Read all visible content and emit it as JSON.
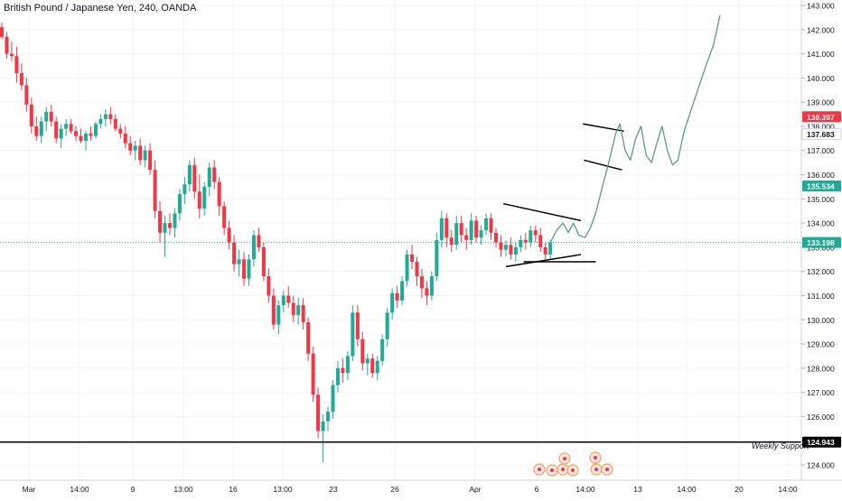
{
  "chart_data": {
    "type": "candlestick",
    "title": "British Pound / Japanese Yen, 240, OANDA",
    "ylim": [
      123.5,
      143.2
    ],
    "y_ticks": [
      124,
      125,
      126,
      127,
      128,
      129,
      130,
      131,
      132,
      133,
      134,
      135,
      136,
      137,
      138,
      139,
      140,
      141,
      142,
      143
    ],
    "y_tick_labels": [
      "124.000",
      "125.000",
      "126.000",
      "127.000",
      "128.000",
      "129.000",
      "130.000",
      "131.000",
      "132.000",
      "133.000",
      "134.000",
      "135.000",
      "136.000",
      "137.000",
      "138.000",
      "139.000",
      "140.000",
      "141.000",
      "142.000",
      "143.000"
    ],
    "x_tick_labels": [
      "Mar",
      "14:00",
      "9",
      "13:00",
      "16",
      "13:00",
      "23",
      "26",
      "Apr",
      "6",
      "14:00",
      "13",
      "14:00",
      "20",
      "14:00"
    ],
    "price_badges": [
      {
        "label": "138.397",
        "value": 138.397,
        "color": "#f23645"
      },
      {
        "label": "137.683",
        "value": 137.683,
        "color": "#ffffff"
      },
      {
        "label": "135.534",
        "value": 135.534,
        "color": "#22ab94"
      },
      {
        "label": "133.198",
        "value": 133.198,
        "color": "#22ab94"
      },
      {
        "label": "124.943",
        "value": 124.943,
        "color": "#000000"
      }
    ],
    "current_price": 133.198,
    "support_level": 124.943,
    "support_label": "Weekly Support",
    "colors": {
      "up": "#22ab94",
      "down": "#f23645",
      "projection": "#5b9a88",
      "lines": "#000000"
    },
    "candles": [
      [
        142.1,
        142.3,
        141.6,
        141.7
      ],
      [
        141.7,
        141.9,
        140.8,
        141.0
      ],
      [
        141.0,
        141.5,
        140.7,
        140.9
      ],
      [
        140.9,
        141.3,
        139.8,
        140.2
      ],
      [
        140.2,
        140.6,
        139.5,
        139.7
      ],
      [
        139.7,
        140.0,
        138.6,
        138.9
      ],
      [
        138.9,
        139.2,
        137.7,
        138.0
      ],
      [
        138.0,
        138.4,
        137.4,
        137.6
      ],
      [
        137.6,
        138.4,
        137.3,
        138.2
      ],
      [
        138.2,
        138.8,
        137.8,
        138.6
      ],
      [
        138.6,
        138.9,
        138.0,
        138.2
      ],
      [
        138.2,
        138.4,
        137.3,
        137.5
      ],
      [
        137.5,
        138.1,
        137.1,
        137.9
      ],
      [
        137.9,
        138.3,
        137.6,
        138.1
      ],
      [
        138.1,
        138.3,
        137.7,
        137.8
      ],
      [
        137.8,
        138.0,
        137.4,
        137.6
      ],
      [
        137.6,
        137.9,
        137.3,
        137.4
      ],
      [
        137.4,
        137.8,
        137.0,
        137.7
      ],
      [
        137.7,
        138.0,
        137.4,
        137.6
      ],
      [
        137.6,
        138.2,
        137.5,
        138.1
      ],
      [
        138.1,
        138.5,
        137.9,
        138.3
      ],
      [
        138.3,
        138.7,
        138.0,
        138.5
      ],
      [
        138.5,
        138.8,
        138.1,
        138.3
      ],
      [
        138.3,
        138.5,
        137.8,
        137.9
      ],
      [
        137.9,
        138.1,
        137.5,
        137.7
      ],
      [
        137.7,
        138.0,
        137.1,
        137.3
      ],
      [
        137.3,
        137.6,
        136.8,
        137.0
      ],
      [
        137.0,
        137.4,
        136.6,
        137.2
      ],
      [
        137.2,
        137.5,
        136.4,
        136.6
      ],
      [
        136.6,
        137.2,
        136.3,
        137.0
      ],
      [
        137.0,
        137.3,
        136.0,
        136.2
      ],
      [
        136.2,
        136.6,
        134.2,
        134.5
      ],
      [
        134.5,
        134.9,
        133.2,
        133.6
      ],
      [
        133.6,
        134.3,
        132.6,
        134.0
      ],
      [
        134.0,
        134.4,
        133.5,
        133.8
      ],
      [
        133.8,
        134.6,
        133.4,
        134.4
      ],
      [
        134.4,
        135.4,
        134.1,
        135.2
      ],
      [
        135.2,
        135.9,
        134.8,
        135.6
      ],
      [
        135.6,
        136.6,
        135.3,
        136.4
      ],
      [
        136.4,
        136.7,
        135.0,
        135.3
      ],
      [
        135.3,
        136.0,
        134.2,
        134.6
      ],
      [
        134.6,
        135.7,
        134.3,
        135.5
      ],
      [
        135.5,
        136.5,
        135.1,
        136.3
      ],
      [
        136.3,
        136.6,
        135.4,
        135.7
      ],
      [
        135.7,
        135.9,
        134.3,
        134.7
      ],
      [
        134.7,
        134.9,
        133.5,
        133.8
      ],
      [
        133.8,
        134.1,
        132.9,
        133.2
      ],
      [
        133.2,
        133.5,
        132.0,
        132.3
      ],
      [
        132.3,
        132.9,
        131.8,
        132.5
      ],
      [
        132.5,
        132.8,
        131.4,
        131.7
      ],
      [
        131.7,
        132.7,
        131.4,
        132.5
      ],
      [
        132.5,
        133.7,
        132.2,
        133.5
      ],
      [
        133.5,
        133.8,
        132.8,
        133.0
      ],
      [
        133.0,
        133.2,
        131.6,
        131.8
      ],
      [
        131.8,
        132.1,
        130.7,
        131.0
      ],
      [
        131.0,
        131.3,
        129.6,
        129.8
      ],
      [
        129.8,
        130.8,
        129.4,
        130.6
      ],
      [
        130.6,
        131.2,
        130.3,
        131.0
      ],
      [
        131.0,
        131.4,
        130.5,
        130.7
      ],
      [
        130.7,
        131.0,
        129.9,
        130.2
      ],
      [
        130.2,
        130.9,
        129.8,
        130.6
      ],
      [
        130.6,
        130.9,
        129.6,
        129.9
      ],
      [
        129.9,
        130.1,
        128.3,
        128.6
      ],
      [
        128.6,
        128.9,
        126.6,
        126.9
      ],
      [
        126.9,
        127.2,
        125.1,
        125.4
      ],
      [
        125.4,
        126.1,
        124.1,
        125.8
      ],
      [
        125.8,
        126.4,
        125.4,
        126.2
      ],
      [
        126.2,
        127.5,
        125.9,
        127.3
      ],
      [
        127.3,
        128.3,
        127.0,
        128.0
      ],
      [
        128.0,
        128.4,
        127.4,
        127.8
      ],
      [
        127.8,
        128.7,
        127.5,
        128.5
      ],
      [
        128.5,
        130.6,
        128.3,
        130.3
      ],
      [
        130.3,
        130.6,
        128.9,
        129.2
      ],
      [
        129.2,
        129.5,
        127.9,
        128.2
      ],
      [
        128.2,
        128.6,
        127.7,
        128.4
      ],
      [
        128.4,
        128.6,
        127.6,
        127.8
      ],
      [
        127.8,
        128.5,
        127.5,
        128.3
      ],
      [
        128.3,
        129.4,
        128.1,
        129.2
      ],
      [
        129.2,
        130.5,
        128.9,
        130.3
      ],
      [
        130.3,
        131.3,
        130.0,
        131.1
      ],
      [
        131.1,
        131.4,
        130.5,
        130.8
      ],
      [
        130.8,
        131.8,
        130.6,
        131.6
      ],
      [
        131.6,
        132.9,
        131.4,
        132.7
      ],
      [
        132.7,
        133.1,
        132.1,
        132.4
      ],
      [
        132.4,
        132.6,
        131.4,
        131.8
      ],
      [
        131.8,
        132.1,
        130.9,
        131.3
      ],
      [
        131.3,
        131.6,
        130.6,
        131.0
      ],
      [
        131.0,
        132.0,
        130.8,
        131.8
      ],
      [
        131.8,
        133.6,
        131.6,
        133.3
      ],
      [
        133.3,
        134.5,
        133.0,
        134.2
      ],
      [
        134.2,
        134.4,
        133.0,
        133.4
      ],
      [
        133.4,
        133.7,
        132.8,
        133.1
      ],
      [
        133.1,
        134.3,
        132.9,
        134.0
      ],
      [
        134.0,
        134.3,
        133.2,
        133.5
      ],
      [
        133.5,
        133.8,
        132.9,
        133.3
      ],
      [
        133.3,
        134.4,
        133.1,
        134.1
      ],
      [
        134.1,
        134.3,
        133.2,
        133.4
      ],
      [
        133.4,
        133.9,
        133.1,
        133.7
      ],
      [
        133.7,
        134.4,
        133.5,
        134.2
      ],
      [
        134.2,
        134.4,
        133.3,
        133.6
      ],
      [
        133.6,
        133.8,
        133.0,
        133.2
      ],
      [
        133.2,
        133.5,
        132.6,
        132.9
      ],
      [
        132.9,
        133.3,
        132.6,
        133.1
      ],
      [
        133.1,
        133.4,
        132.5,
        132.7
      ],
      [
        132.7,
        133.2,
        132.4,
        133.0
      ],
      [
        133.0,
        133.5,
        132.8,
        133.3
      ],
      [
        133.3,
        133.6,
        132.9,
        133.2
      ],
      [
        133.2,
        133.9,
        133.0,
        133.7
      ],
      [
        133.7,
        133.9,
        133.2,
        133.5
      ],
      [
        133.5,
        133.8,
        132.8,
        133.0
      ],
      [
        133.0,
        133.2,
        132.5,
        132.7
      ],
      [
        132.7,
        133.3,
        132.5,
        133.2
      ]
    ],
    "projection_path": [
      [
        0.0,
        133.2
      ],
      [
        0.6,
        133.7
      ],
      [
        1.2,
        134.0
      ],
      [
        1.7,
        133.6
      ],
      [
        2.2,
        134.0
      ],
      [
        2.7,
        133.5
      ],
      [
        3.3,
        133.4
      ],
      [
        3.8,
        133.8
      ],
      [
        4.3,
        134.4
      ],
      [
        5.0,
        135.6
      ],
      [
        5.6,
        136.6
      ],
      [
        6.2,
        137.7
      ],
      [
        6.6,
        138.1
      ],
      [
        7.1,
        137.0
      ],
      [
        7.6,
        136.6
      ],
      [
        8.1,
        137.5
      ],
      [
        8.6,
        138.0
      ],
      [
        9.1,
        136.8
      ],
      [
        9.6,
        136.5
      ],
      [
        10.1,
        137.3
      ],
      [
        10.6,
        138.0
      ],
      [
        11.1,
        137.0
      ],
      [
        11.6,
        136.4
      ],
      [
        12.1,
        136.6
      ],
      [
        12.7,
        137.8
      ],
      [
        13.6,
        139.0
      ],
      [
        14.6,
        140.3
      ],
      [
        15.5,
        141.4
      ],
      [
        16.1,
        142.6
      ]
    ],
    "trendlines": [
      {
        "from": [
          -9.5,
          134.8
        ],
        "to": [
          6.2,
          134.1
        ]
      },
      {
        "from": [
          -9.0,
          132.2
        ],
        "to": [
          6.2,
          132.7
        ]
      },
      {
        "from": [
          -5.4,
          132.4
        ],
        "to": [
          9.2,
          132.4
        ]
      },
      {
        "from": [
          6.6,
          138.1
        ],
        "to": [
          14.9,
          137.8
        ]
      },
      {
        "from": [
          6.8,
          136.6
        ],
        "to": [
          14.5,
          136.2
        ]
      }
    ]
  }
}
